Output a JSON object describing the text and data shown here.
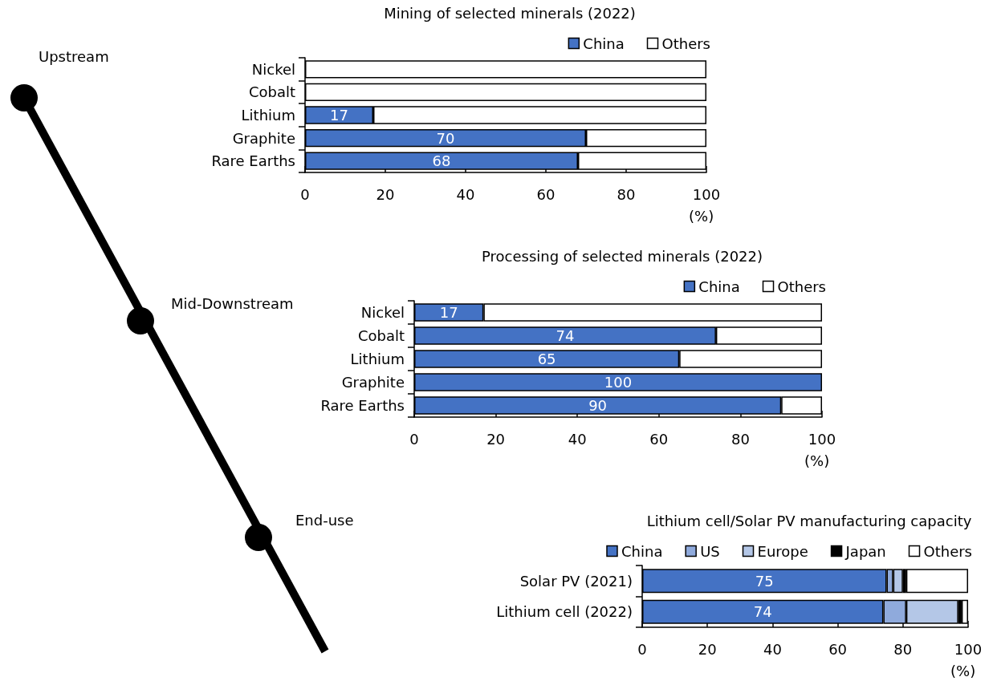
{
  "chart_data": [
    {
      "type": "other",
      "annotations": [
        "Upstream",
        "Mid-Downstream",
        "End-use"
      ]
    },
    {
      "type": "bar",
      "title": "Mining of selected minerals (2022)",
      "xlabel": "(%)",
      "orientation": "horizontal",
      "stacked": true,
      "legend": "top right",
      "grid": false,
      "categories": [
        "Nickel",
        "Cobalt",
        "Lithium",
        "Graphite",
        "Rare Earths"
      ],
      "series": [
        {
          "name": "China",
          "color": "#4472c4",
          "values": [
            0,
            0,
            17,
            70,
            68
          ],
          "value_labels": [
            null,
            null,
            "17",
            "70",
            "68"
          ]
        },
        {
          "name": "Others",
          "color": "#ffffff",
          "values": [
            100,
            100,
            83,
            30,
            32
          ]
        }
      ],
      "xlim": [
        0,
        100
      ],
      "xticks": [
        0,
        20,
        40,
        60,
        80,
        100
      ]
    },
    {
      "type": "bar",
      "title": "Processing of selected minerals (2022)",
      "xlabel": "(%)",
      "orientation": "horizontal",
      "stacked": true,
      "legend": "top right",
      "grid": false,
      "categories": [
        "Nickel",
        "Cobalt",
        "Lithium",
        "Graphite",
        "Rare Earths"
      ],
      "series": [
        {
          "name": "China",
          "color": "#4472c4",
          "values": [
            17,
            74,
            65,
            100,
            90
          ],
          "value_labels": [
            "17",
            "74",
            "65",
            "100",
            "90"
          ]
        },
        {
          "name": "Others",
          "color": "#ffffff",
          "values": [
            83,
            26,
            35,
            0,
            10
          ]
        }
      ],
      "xlim": [
        0,
        100
      ],
      "xticks": [
        0,
        20,
        40,
        60,
        80,
        100
      ]
    },
    {
      "type": "bar",
      "title": "Lithium cell/Solar PV manufacturing capacity",
      "xlabel": "(%)",
      "orientation": "horizontal",
      "stacked": true,
      "legend": "top right",
      "grid": false,
      "categories": [
        "Solar PV (2021)",
        "Lithium cell (2022)"
      ],
      "series": [
        {
          "name": "China",
          "color": "#4472c4",
          "values": [
            75,
            74
          ],
          "value_labels": [
            "75",
            "74"
          ]
        },
        {
          "name": "US",
          "color": "#8faadc",
          "values": [
            2,
            7
          ]
        },
        {
          "name": "Europe",
          "color": "#b4c7e7",
          "values": [
            3,
            16
          ]
        },
        {
          "name": "Japan",
          "color": "#000000",
          "values": [
            1,
            1
          ]
        },
        {
          "name": "Others",
          "color": "#ffffff",
          "values": [
            19,
            2
          ]
        }
      ],
      "xlim": [
        0,
        100
      ],
      "xticks": [
        0,
        20,
        40,
        60,
        80,
        100
      ]
    }
  ]
}
